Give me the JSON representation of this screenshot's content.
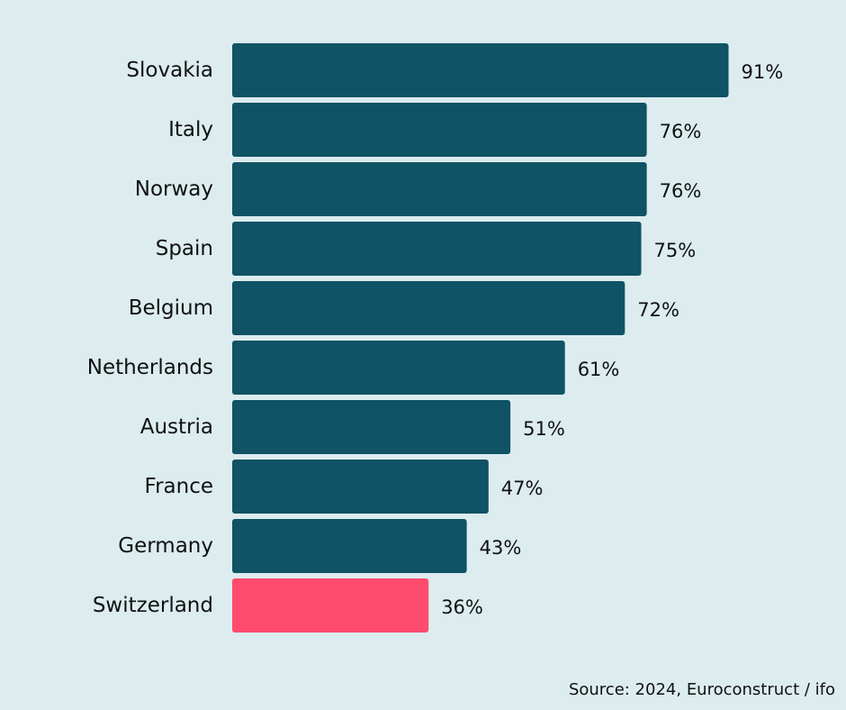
{
  "chart_data": {
    "type": "bar",
    "orientation": "horizontal",
    "categories": [
      "Slovakia",
      "Italy",
      "Norway",
      "Spain",
      "Belgium",
      "Netherlands",
      "Austria",
      "France",
      "Germany",
      "Switzerland"
    ],
    "values": [
      91,
      76,
      76,
      75,
      72,
      61,
      51,
      47,
      43,
      36
    ],
    "value_labels": [
      "91%",
      "76%",
      "76%",
      "75%",
      "72%",
      "61%",
      "51%",
      "47%",
      "43%",
      "36%"
    ],
    "unit": "%",
    "xlim": [
      0,
      100
    ],
    "grid": false,
    "legend": "none",
    "colors": {
      "default": "#0f5364",
      "highlight": "#ff4b6e",
      "background": "#dcecef"
    },
    "highlight_category": "Switzerland"
  },
  "source": "Source: 2024, Euroconstruct / ifo"
}
